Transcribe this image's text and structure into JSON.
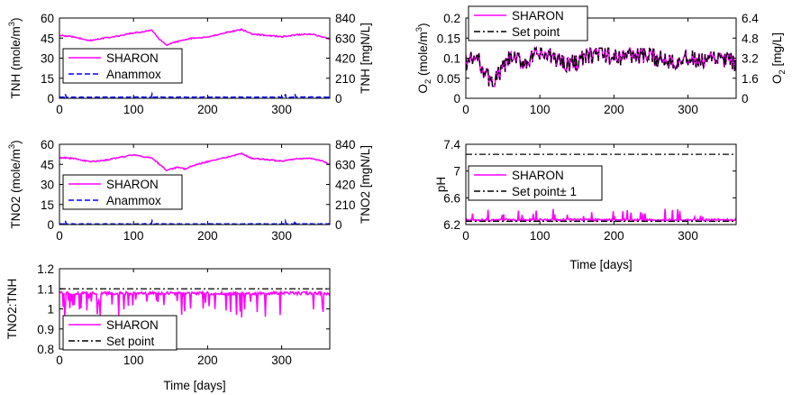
{
  "colors": {
    "sharon": "#ff00ff",
    "anammox": "#0000ff",
    "setpoint": "#000000"
  },
  "chart_data": [
    {
      "id": "tnh",
      "type": "line",
      "xlabel": "",
      "ylabel": "TNH (mole/m",
      "ylabel_sup": "3",
      "ylabel_close": ")",
      "ylabel_right": "TNH [mgN/L]",
      "xlim": [
        0,
        365
      ],
      "ylim": [
        0,
        60
      ],
      "yticks": [
        0,
        15,
        30,
        45,
        60
      ],
      "yticks_right": [
        0,
        210,
        420,
        630,
        840
      ],
      "xticks": [
        0,
        100,
        200,
        300
      ],
      "legend": "middle-left",
      "series": [
        {
          "name": "SHARON",
          "style": "solid",
          "color": "#ff00ff",
          "gen": "tnh",
          "x": [
            0,
            20,
            40,
            60,
            80,
            100,
            110,
            125,
            135,
            145,
            160,
            180,
            200,
            220,
            246,
            260,
            280,
            300,
            320,
            340,
            355,
            365
          ],
          "values": [
            47,
            46,
            43,
            45,
            46.5,
            49,
            49.5,
            51,
            44,
            40,
            42.5,
            45,
            45.5,
            48.5,
            51.5,
            48,
            47,
            46,
            47.5,
            48,
            46,
            44
          ]
        },
        {
          "name": "Anammox",
          "style": "dashed",
          "color": "#0000ff",
          "gen": "low",
          "x": [
            0,
            365
          ],
          "values": [
            0.7,
            0.7
          ]
        }
      ]
    },
    {
      "id": "o2",
      "type": "line",
      "xlabel": "",
      "ylabel": "O",
      "ylabel_sub": "2",
      "ylabel_tail": " (mole/m",
      "ylabel_sup": "3",
      "ylabel_close": ")",
      "ylabel_right": "O",
      "ylabel_right_sub": "2",
      "ylabel_right_tail": " [mg/L]",
      "xlim": [
        0,
        365
      ],
      "ylim": [
        0,
        0.2
      ],
      "yticks": [
        0,
        0.05,
        0.1,
        0.15,
        0.2
      ],
      "yticks_right": [
        0,
        1.6,
        3.2,
        4.8,
        6.4
      ],
      "xticks": [
        0,
        100,
        200,
        300
      ],
      "legend": "top-left",
      "series": [
        {
          "name": "SHARON",
          "style": "solid",
          "color": "#ff00ff",
          "gen": "o2",
          "x": [
            0,
            15,
            25,
            35,
            45,
            60,
            80,
            100,
            120,
            140,
            160,
            180,
            200,
            220,
            240,
            260,
            280,
            300,
            320,
            340,
            360,
            365
          ],
          "values": [
            0.09,
            0.1,
            0.07,
            0.035,
            0.06,
            0.1,
            0.09,
            0.11,
            0.1,
            0.085,
            0.1,
            0.115,
            0.1,
            0.11,
            0.105,
            0.1,
            0.095,
            0.1,
            0.09,
            0.1,
            0.09,
            0.085
          ]
        },
        {
          "name": "Set point",
          "style": "dashdot",
          "color": "#000000",
          "gen": "o2",
          "x": [
            0,
            15,
            25,
            35,
            45,
            60,
            80,
            100,
            120,
            140,
            160,
            180,
            200,
            220,
            240,
            260,
            280,
            300,
            320,
            340,
            360,
            365
          ],
          "values": [
            0.09,
            0.1,
            0.07,
            0.035,
            0.06,
            0.1,
            0.09,
            0.11,
            0.1,
            0.085,
            0.1,
            0.115,
            0.1,
            0.11,
            0.105,
            0.1,
            0.095,
            0.1,
            0.09,
            0.1,
            0.09,
            0.085
          ]
        }
      ]
    },
    {
      "id": "tno2",
      "type": "line",
      "xlabel": "",
      "ylabel": "TNO2 (mole/m",
      "ylabel_sup": "3",
      "ylabel_close": ")",
      "ylabel_right": "TNO2 [mgN/L]",
      "xlim": [
        0,
        365
      ],
      "ylim": [
        0,
        60
      ],
      "yticks": [
        0,
        15,
        30,
        45,
        60
      ],
      "yticks_right": [
        0,
        210,
        420,
        630,
        840
      ],
      "xticks": [
        0,
        100,
        200,
        300
      ],
      "legend": "middle-left",
      "series": [
        {
          "name": "SHARON",
          "style": "solid",
          "color": "#ff00ff",
          "gen": "tnh",
          "x": [
            0,
            20,
            40,
            60,
            80,
            100,
            110,
            125,
            135,
            145,
            160,
            170,
            180,
            200,
            220,
            246,
            260,
            280,
            300,
            320,
            340,
            355,
            365
          ],
          "values": [
            50,
            49.5,
            47,
            48,
            50,
            52,
            51,
            50,
            45,
            40.5,
            43,
            41.5,
            44,
            47,
            49.5,
            53,
            49.5,
            48.5,
            47.5,
            49,
            49.5,
            47.5,
            45
          ]
        },
        {
          "name": "Anammox",
          "style": "dashed",
          "color": "#0000ff",
          "gen": "low",
          "x": [
            0,
            365
          ],
          "values": [
            0.3,
            0.3
          ]
        }
      ]
    },
    {
      "id": "ph",
      "type": "line",
      "xlabel": "Time [days]",
      "ylabel": "pH",
      "xlim": [
        0,
        365
      ],
      "ylim": [
        6.2,
        7.4
      ],
      "yticks": [
        6.2,
        6.6,
        7,
        7.4
      ],
      "xticks": [
        0,
        100,
        200,
        300
      ],
      "legend": "middle-left",
      "series": [
        {
          "name": "SHARON",
          "style": "solid",
          "color": "#ff00ff",
          "gen": "ph",
          "x": [
            0,
            365
          ],
          "values": [
            6.26,
            6.26
          ]
        },
        {
          "name": "Set point± 1",
          "style": "dashdot",
          "color": "#000000",
          "x": [
            0,
            365
          ],
          "values": [
            7.25,
            7.25
          ]
        },
        {
          "name": "",
          "style": "dashdot",
          "color": "#000000",
          "x": [
            0,
            365
          ],
          "values": [
            6.25,
            6.25
          ]
        }
      ]
    },
    {
      "id": "ratio",
      "type": "line",
      "xlabel": "Time [days]",
      "ylabel": "TNO2:TNH",
      "xlim": [
        0,
        365
      ],
      "ylim": [
        0.8,
        1.2
      ],
      "yticks": [
        0.8,
        0.9,
        1,
        1.1,
        1.2
      ],
      "xticks": [
        0,
        100,
        200,
        300
      ],
      "legend": "bottom-left",
      "series": [
        {
          "name": "SHARON",
          "style": "solid",
          "color": "#ff00ff",
          "gen": "ratio",
          "x": [
            0,
            365
          ],
          "values": [
            1.08,
            1.08
          ]
        },
        {
          "name": "Set point",
          "style": "dashdot",
          "color": "#000000",
          "x": [
            0,
            365
          ],
          "values": [
            1.1,
            1.1
          ]
        }
      ]
    }
  ]
}
